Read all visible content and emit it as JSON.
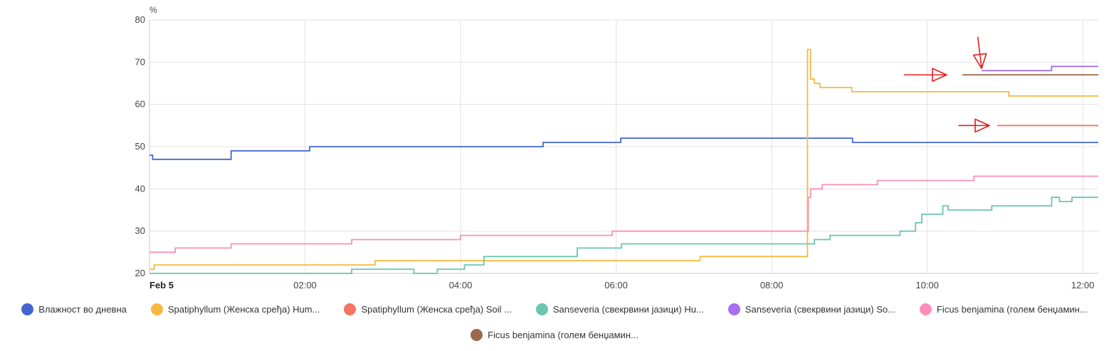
{
  "chart_data": {
    "type": "line",
    "ylabel": "%",
    "ylim": [
      20,
      80
    ],
    "yticks": [
      20,
      30,
      40,
      50,
      60,
      70,
      80
    ],
    "xlim": [
      0,
      12.2
    ],
    "xticks": [
      {
        "value": 0,
        "label": "Feb 5",
        "bold": true
      },
      {
        "value": 2,
        "label": "02:00"
      },
      {
        "value": 4,
        "label": "04:00"
      },
      {
        "value": 6,
        "label": "06:00"
      },
      {
        "value": 8,
        "label": "08:00"
      },
      {
        "value": 10,
        "label": "10:00"
      },
      {
        "value": 12,
        "label": "12:00"
      }
    ],
    "grid": true,
    "legend_position": "bottom",
    "series": [
      {
        "name": "Влажност во дневна",
        "color": "#4665d1",
        "step": true,
        "points": [
          [
            0,
            48
          ],
          [
            0.04,
            47
          ],
          [
            1.05,
            49
          ],
          [
            2.06,
            50
          ],
          [
            5.06,
            51
          ],
          [
            6.06,
            52
          ],
          [
            9.04,
            51
          ],
          [
            12.2,
            51
          ]
        ]
      },
      {
        "name": "Spatiphyllum (Женска сређа) Hum...",
        "color": "#f5b942",
        "step": true,
        "points": [
          [
            0,
            21
          ],
          [
            0.06,
            22
          ],
          [
            2.9,
            23
          ],
          [
            4.2,
            23
          ],
          [
            7.08,
            24
          ],
          [
            8.45,
            24
          ],
          [
            8.46,
            73
          ],
          [
            8.5,
            66
          ],
          [
            8.55,
            65
          ],
          [
            8.62,
            64
          ],
          [
            9.03,
            63
          ],
          [
            11.05,
            62
          ],
          [
            12.2,
            62
          ]
        ]
      },
      {
        "name": "Spatiphyllum (Женска сређа) Soil ...",
        "color": "#f47560",
        "step": true,
        "points": [
          [
            10.9,
            55
          ],
          [
            12.2,
            55
          ]
        ]
      },
      {
        "name": "Sanseveria (свекрвини јазици) Hu...",
        "color": "#6cc5b0",
        "step": true,
        "points": [
          [
            0,
            20
          ],
          [
            2.6,
            21
          ],
          [
            3.4,
            20
          ],
          [
            3.7,
            21
          ],
          [
            4.05,
            22
          ],
          [
            4.3,
            24
          ],
          [
            5.5,
            26
          ],
          [
            6.07,
            27
          ],
          [
            8.55,
            28
          ],
          [
            8.75,
            29
          ],
          [
            9.65,
            30
          ],
          [
            9.85,
            32
          ],
          [
            9.93,
            34
          ],
          [
            10.2,
            36
          ],
          [
            10.27,
            35
          ],
          [
            10.83,
            36
          ],
          [
            11.6,
            38
          ],
          [
            11.7,
            37
          ],
          [
            11.86,
            38
          ],
          [
            12.2,
            38
          ]
        ]
      },
      {
        "name": "Sanseveria (свекрвини јазици) So...",
        "color": "#a66ef0",
        "step": true,
        "points": [
          [
            10.7,
            68
          ],
          [
            11.6,
            69
          ],
          [
            12.2,
            69
          ]
        ]
      },
      {
        "name": "Ficus benjamina (голем бенџамин...",
        "color": "#fc8fb9",
        "step": true,
        "points": [
          [
            0,
            25
          ],
          [
            0.33,
            26
          ],
          [
            1.05,
            27
          ],
          [
            2.6,
            28
          ],
          [
            4.0,
            29
          ],
          [
            5.95,
            30
          ],
          [
            8.45,
            30
          ],
          [
            8.47,
            38
          ],
          [
            8.5,
            40
          ],
          [
            8.65,
            41
          ],
          [
            9.36,
            42
          ],
          [
            10.6,
            43
          ],
          [
            12.2,
            43
          ]
        ]
      },
      {
        "name": "Ficus benjamina (голем бенџамин...",
        "color": "#9a6a4e",
        "step": true,
        "points": [
          [
            10.45,
            67
          ],
          [
            12.2,
            67
          ]
        ]
      }
    ],
    "annotations": [
      {
        "type": "arrow",
        "color": "#e02020",
        "from": [
          9.7,
          67
        ],
        "to": [
          10.25,
          67
        ]
      },
      {
        "type": "arrow",
        "color": "#e02020",
        "from": [
          10.65,
          76
        ],
        "to": [
          10.7,
          68.5
        ]
      },
      {
        "type": "arrow",
        "color": "#e02020",
        "from": [
          10.4,
          55
        ],
        "to": [
          10.8,
          55
        ]
      }
    ]
  }
}
